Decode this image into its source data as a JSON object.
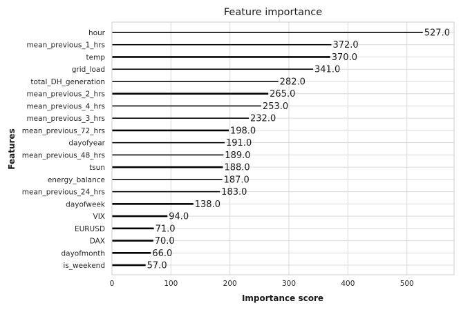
{
  "chart_data": {
    "type": "bar",
    "orientation": "horizontal",
    "title": "Feature importance",
    "xlabel": "Importance score",
    "ylabel": "Features",
    "xlim": [
      0,
      580
    ],
    "xticks": [
      0,
      100,
      200,
      300,
      400,
      500
    ],
    "grid": true,
    "bar_color": "#000000",
    "categories": [
      "hour",
      "mean_previous_1_hrs",
      "temp",
      "grid_load",
      "total_DH_generation",
      "mean_previous_2_hrs",
      "mean_previous_4_hrs",
      "mean_previous_3_hrs",
      "mean_previous_72_hrs",
      "dayofyear",
      "mean_previous_48_hrs",
      "tsun",
      "energy_balance",
      "mean_previous_24_hrs",
      "dayofweek",
      "VIX",
      "EURUSD",
      "DAX",
      "dayofmonth",
      "is_weekend"
    ],
    "values": [
      527,
      372,
      370,
      341,
      282,
      265,
      253,
      232,
      198,
      191,
      189,
      188,
      187,
      183,
      138,
      94,
      71,
      70,
      66,
      57
    ],
    "value_labels": [
      "527.0",
      "372.0",
      "370.0",
      "341.0",
      "282.0",
      "265.0",
      "253.0",
      "232.0",
      "198.0",
      "191.0",
      "189.0",
      "188.0",
      "187.0",
      "183.0",
      "138.0",
      "94.0",
      "71.0",
      "70.0",
      "66.0",
      "57.0"
    ]
  }
}
